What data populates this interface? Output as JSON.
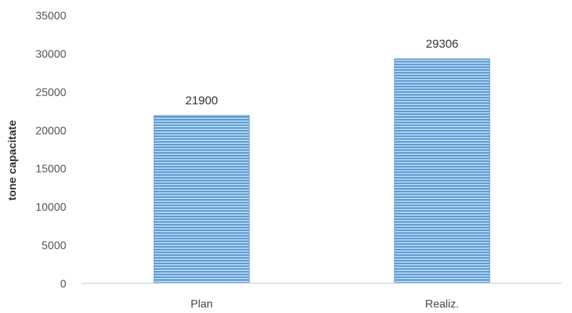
{
  "chart_data": {
    "type": "bar",
    "categories": [
      "Plan",
      "Realiz."
    ],
    "values": [
      21900,
      29306
    ],
    "data_labels": [
      "21900",
      "29306"
    ],
    "title": "",
    "xlabel": "",
    "ylabel": "tone capacitate",
    "ylim": [
      0,
      35000
    ],
    "yticks": [
      0,
      5000,
      10000,
      15000,
      20000,
      25000,
      30000,
      35000
    ],
    "ytick_labels": [
      "0",
      "5000",
      "10000",
      "15000",
      "20000",
      "25000",
      "30000",
      "35000"
    ],
    "grid": false,
    "legend": "none",
    "bar_color": "#5b9bd5",
    "bar_stripe_color": "#ffffff"
  }
}
